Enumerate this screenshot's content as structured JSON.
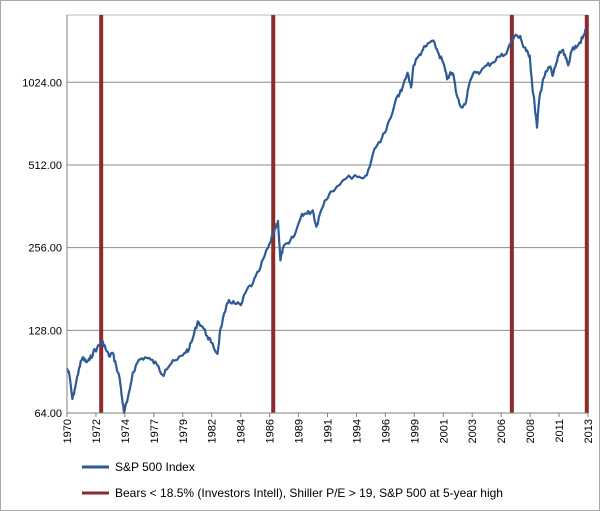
{
  "chart_data": {
    "type": "line",
    "title": "",
    "xlabel": "",
    "ylabel": "",
    "y_scale": "log2",
    "ylim": [
      64,
      1800
    ],
    "xlim": [
      1970.0,
      2013.45
    ],
    "y_ticks": [
      64,
      128,
      256,
      512,
      1024
    ],
    "y_tick_labels": [
      "64.00",
      "128.00",
      "256.00",
      "512.00",
      "1024.00"
    ],
    "x_tick_labels": [
      "1970",
      "1972",
      "1974",
      "1977",
      "1979",
      "1982",
      "1984",
      "1986",
      "1989",
      "1991",
      "1994",
      "1996",
      "1999",
      "2001",
      "2003",
      "2006",
      "2008",
      "2011",
      "2013"
    ],
    "grid": "horizontal",
    "legend_position": "bottom",
    "series": [
      {
        "name": "S&P 500 Index",
        "color": "#2e5a95",
        "x": [
          1970.0,
          1970.2,
          1970.45,
          1970.7,
          1971.0,
          1971.3,
          1971.6,
          1971.9,
          1972.2,
          1972.5,
          1972.8,
          1973.0,
          1973.2,
          1973.5,
          1973.8,
          1974.1,
          1974.4,
          1974.6,
          1974.75,
          1975.0,
          1975.5,
          1976.0,
          1976.5,
          1977.0,
          1977.5,
          1978.0,
          1978.2,
          1978.7,
          1979.2,
          1979.8,
          1980.2,
          1980.5,
          1980.9,
          1981.3,
          1981.7,
          1982.0,
          1982.55,
          1982.8,
          1983.2,
          1983.5,
          1984.0,
          1984.5,
          1985.0,
          1985.5,
          1986.0,
          1986.5,
          1987.0,
          1987.35,
          1987.6,
          1987.8,
          1988.0,
          1988.5,
          1989.0,
          1989.6,
          1990.0,
          1990.5,
          1990.8,
          1991.0,
          1991.5,
          1992.0,
          1993.0,
          1994.0,
          1994.5,
          1995.0,
          1995.5,
          1996.0,
          1996.5,
          1997.0,
          1997.6,
          1997.9,
          1998.4,
          1998.7,
          1998.9,
          1999.3,
          1999.7,
          2000.0,
          2000.4,
          2000.7,
          2001.0,
          2001.4,
          2001.7,
          2001.9,
          2002.2,
          2002.5,
          2002.8,
          2003.2,
          2003.5,
          2004.0,
          2004.5,
          2005.0,
          2005.5,
          2006.0,
          2006.5,
          2007.0,
          2007.3,
          2007.8,
          2008.0,
          2008.3,
          2008.6,
          2008.8,
          2009.0,
          2009.2,
          2009.4,
          2009.7,
          2010.0,
          2010.3,
          2010.5,
          2010.8,
          2011.0,
          2011.3,
          2011.6,
          2011.8,
          2012.0,
          2012.4,
          2012.7,
          2013.0,
          2013.3
        ],
        "values": [
          93,
          88,
          72,
          80,
          93,
          102,
          98,
          100,
          107,
          110,
          115,
          116,
          110,
          103,
          106,
          95,
          85,
          72,
          64,
          70,
          90,
          100,
          102,
          100,
          96,
          88,
          92,
          97,
          100,
          106,
          110,
          120,
          138,
          132,
          122,
          116,
          105,
          130,
          150,
          165,
          160,
          158,
          180,
          190,
          210,
          240,
          270,
          300,
          320,
          230,
          255,
          265,
          285,
          340,
          340,
          350,
          305,
          330,
          380,
          410,
          450,
          470,
          460,
          470,
          560,
          620,
          670,
          760,
          920,
          950,
          1110,
          980,
          1180,
          1270,
          1350,
          1390,
          1450,
          1400,
          1300,
          1200,
          1050,
          1090,
          1100,
          920,
          840,
          850,
          990,
          1120,
          1120,
          1180,
          1210,
          1270,
          1290,
          1420,
          1500,
          1510,
          1400,
          1330,
          1280,
          1000,
          850,
          700,
          900,
          1050,
          1120,
          1170,
          1080,
          1200,
          1280,
          1340,
          1250,
          1180,
          1300,
          1390,
          1420,
          1480,
          1590
        ]
      }
    ],
    "markers": {
      "name": "Bears < 18.5% (Investors Intell), Shiller P/E > 19, S&P 500 at 5-year high",
      "color": "#8b2b2b",
      "x": [
        1972.85,
        1987.2,
        2007.1,
        2013.35
      ]
    }
  }
}
